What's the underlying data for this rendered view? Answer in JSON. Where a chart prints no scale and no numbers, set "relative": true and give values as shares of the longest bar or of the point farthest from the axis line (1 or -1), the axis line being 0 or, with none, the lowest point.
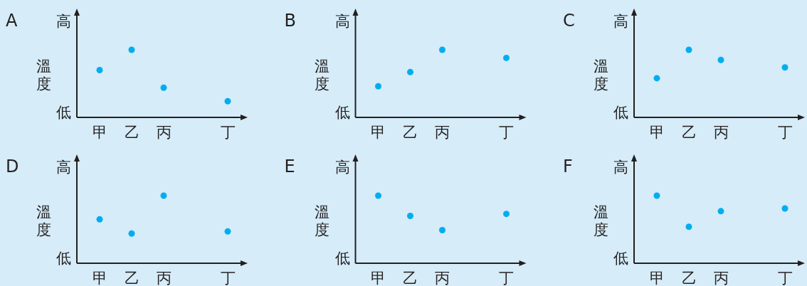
{
  "chart_data": [
    {
      "type": "scatter",
      "title": "A",
      "ylabel": "溫度",
      "annotations": [
        "高",
        "低"
      ],
      "categories": [
        "甲",
        "乙",
        "丙",
        null,
        "丁"
      ],
      "relative": true,
      "marker": "circle",
      "series": [
        {
          "color": "#00aeef",
          "values": [
            0.7,
            1,
            0.44,
            null,
            0.24
          ]
        }
      ]
    },
    {
      "type": "scatter",
      "title": "B",
      "ylabel": "溫度",
      "annotations": [
        "高",
        "低"
      ],
      "categories": [
        "甲",
        "乙",
        "丙",
        null,
        "丁"
      ],
      "relative": true,
      "marker": "circle",
      "series": [
        {
          "color": "#00aeef",
          "values": [
            0.46,
            0.67,
            1,
            null,
            0.88
          ]
        }
      ]
    },
    {
      "type": "scatter",
      "title": "C",
      "ylabel": "溫度",
      "annotations": [
        "高",
        "低"
      ],
      "categories": [
        "甲",
        "乙",
        "丙",
        null,
        "丁"
      ],
      "relative": true,
      "marker": "circle",
      "series": [
        {
          "color": "#00aeef",
          "values": [
            0.58,
            1,
            0.85,
            null,
            0.74
          ]
        }
      ]
    },
    {
      "type": "scatter",
      "title": "D",
      "ylabel": "溫度",
      "annotations": [
        "高",
        "低"
      ],
      "categories": [
        "甲",
        "乙",
        "丙",
        null,
        "丁"
      ],
      "relative": true,
      "marker": "circle",
      "series": [
        {
          "color": "#00aeef",
          "values": [
            0.65,
            0.44,
            1,
            null,
            0.47
          ]
        }
      ]
    },
    {
      "type": "scatter",
      "title": "E",
      "ylabel": "溫度",
      "annotations": [
        "高",
        "低"
      ],
      "categories": [
        "甲",
        "乙",
        "丙",
        null,
        "丁"
      ],
      "relative": true,
      "marker": "circle",
      "series": [
        {
          "color": "#00aeef",
          "values": [
            1,
            0.7,
            0.49,
            null,
            0.73
          ]
        }
      ]
    },
    {
      "type": "scatter",
      "title": "F",
      "ylabel": "溫度",
      "annotations": [
        "高",
        "低"
      ],
      "categories": [
        "甲",
        "乙",
        "丙",
        null,
        "丁"
      ],
      "relative": true,
      "marker": "circle",
      "series": [
        {
          "color": "#00aeef",
          "values": [
            1,
            0.54,
            0.77,
            null,
            0.81
          ]
        }
      ]
    }
  ]
}
